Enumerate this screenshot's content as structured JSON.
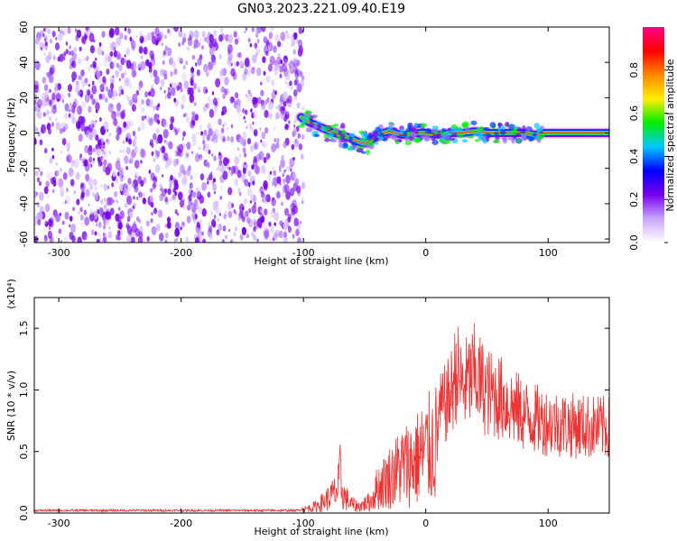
{
  "title": "GN03.2023.221.09.40.E19",
  "chart_data": [
    {
      "type": "heatmap",
      "xlabel": "Height of straight line (km)",
      "ylabel": "Frequency (Hz)",
      "xlim": [
        -320,
        150
      ],
      "ylim": [
        -62,
        60
      ],
      "xticks": [
        -300,
        -200,
        -100,
        0,
        100
      ],
      "yticks": [
        60,
        40,
        20,
        0,
        -20,
        -40,
        -60
      ],
      "colorbar": {
        "label": "Normalized spectral amplitude",
        "ticks": [
          "0.0",
          "0.2",
          "0.4",
          "0.6",
          "0.8"
        ],
        "range": [
          0,
          1
        ],
        "colors": [
          "#ffffff",
          "#c9a6ff",
          "#7700ee",
          "#0000ff",
          "#00c8ff",
          "#00ee00",
          "#ffee00",
          "#ff8800",
          "#ff0000",
          "#ff0088"
        ]
      },
      "noise_region_x": [
        -320,
        -100
      ],
      "signal_ridge": {
        "x": [
          -102,
          -95,
          -85,
          -75,
          -65,
          -55,
          -50,
          -45,
          -40,
          -35,
          -30,
          -25,
          -20,
          -15,
          -10,
          0,
          10,
          20,
          30,
          40,
          50,
          60,
          70,
          80,
          90,
          95,
          100,
          120,
          150
        ],
        "y": [
          9,
          6,
          3,
          0,
          -2,
          -5,
          -6,
          -4,
          -2,
          0,
          1,
          0,
          -1,
          -1,
          0,
          0,
          -1,
          0,
          0,
          1,
          0,
          0,
          0,
          0,
          -1,
          0,
          0,
          0,
          0
        ]
      }
    },
    {
      "type": "line",
      "xlabel": "Height of straight line (km)",
      "ylabel": "SNR (10 * v/v)",
      "yscale_label": "(x10⁴)",
      "xlim": [
        -320,
        150
      ],
      "ylim": [
        0,
        1.75
      ],
      "xticks": [
        -300,
        -200,
        -100,
        0,
        100
      ],
      "yticks": [
        "0.0",
        "0.5",
        "1.0",
        "1.5"
      ],
      "color": "#ee3333",
      "series": [
        {
          "x": [
            -320,
            -200,
            -105,
            -90,
            -80,
            -72,
            -70,
            -68,
            -62,
            -55,
            -45,
            -40,
            -30,
            -20,
            -10,
            0,
            10,
            20,
            25,
            30,
            40,
            50,
            60,
            70,
            80,
            90,
            100,
            120,
            150
          ],
          "y": [
            0.03,
            0.03,
            0.03,
            0.1,
            0.22,
            0.35,
            0.58,
            0.3,
            0.15,
            0.1,
            0.18,
            0.38,
            0.55,
            0.72,
            0.8,
            0.95,
            1.1,
            1.3,
            1.6,
            1.4,
            1.55,
            1.35,
            1.3,
            1.2,
            1.1,
            1.05,
            1.02,
            0.98,
            0.95
          ]
        }
      ]
    }
  ]
}
